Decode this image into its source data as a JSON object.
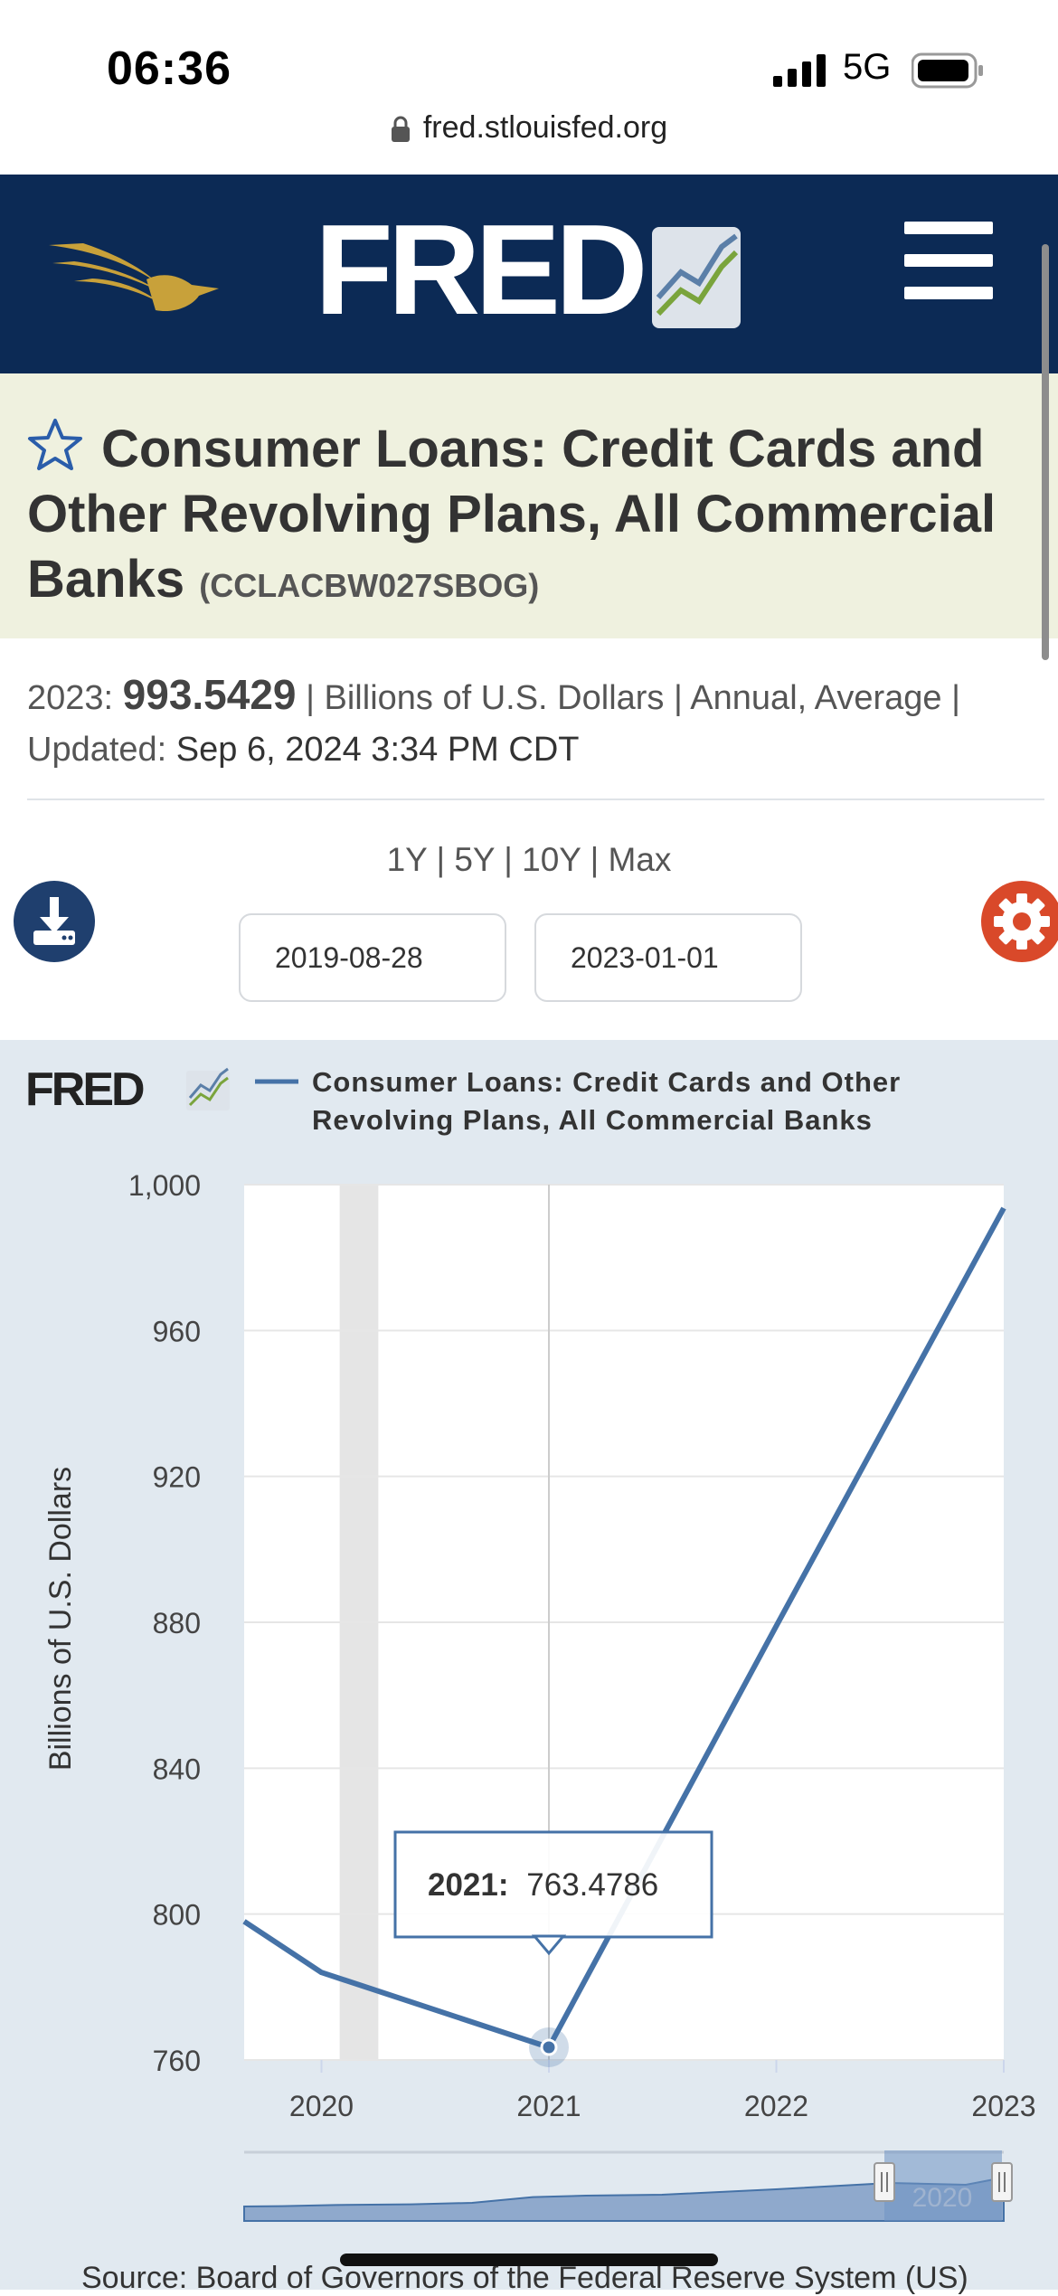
{
  "status_bar": {
    "time": "06:36",
    "network": "5G"
  },
  "browser": {
    "url": "fred.stlouisfed.org"
  },
  "header": {
    "logo_text": "FRED"
  },
  "series": {
    "title": "Consumer Loans: Credit Cards and Other Revolving Plans, All Commercial Banks",
    "code": "(CCLACBW027SBOG)",
    "latest_label": "2023:",
    "latest_value": "993.5429",
    "units_freq_1": "| Billions of U.S. Dollars | Annual,",
    "agg": "Average",
    "updated_label": "| Updated:",
    "updated": "Sep 6, 2024 3:34 PM CDT"
  },
  "range": {
    "buttons": [
      "1Y",
      "5Y",
      "10Y",
      "Max"
    ],
    "separator": "|",
    "start": "2019-08-28",
    "end": "2023-01-01"
  },
  "chart_data": {
    "type": "line",
    "title": "",
    "legend": "Consumer Loans: Credit Cards and Other Revolving Plans, All Commercial Banks",
    "ylabel": "Billions of U.S. Dollars",
    "xlabel": "",
    "x_ticks": [
      "2020",
      "2021",
      "2022",
      "2023"
    ],
    "y_ticks": [
      "760",
      "800",
      "840",
      "880",
      "920",
      "960",
      "1,000"
    ],
    "ylim": [
      760,
      1000
    ],
    "xlim": [
      2019.66,
      2023.0
    ],
    "series": [
      {
        "x": [
          2019.66,
          2020.0,
          2021.0,
          2022.0,
          2023.0
        ],
        "y": [
          798,
          784,
          763.4786,
          879,
          993.5429
        ]
      }
    ],
    "recession_band": [
      2020.08,
      2020.25
    ],
    "tooltip": {
      "label": "2021:",
      "value": "763.4786"
    },
    "navigator_label": "2020"
  },
  "source": "Source: Board of Governors of the Federal Reserve System (US)"
}
